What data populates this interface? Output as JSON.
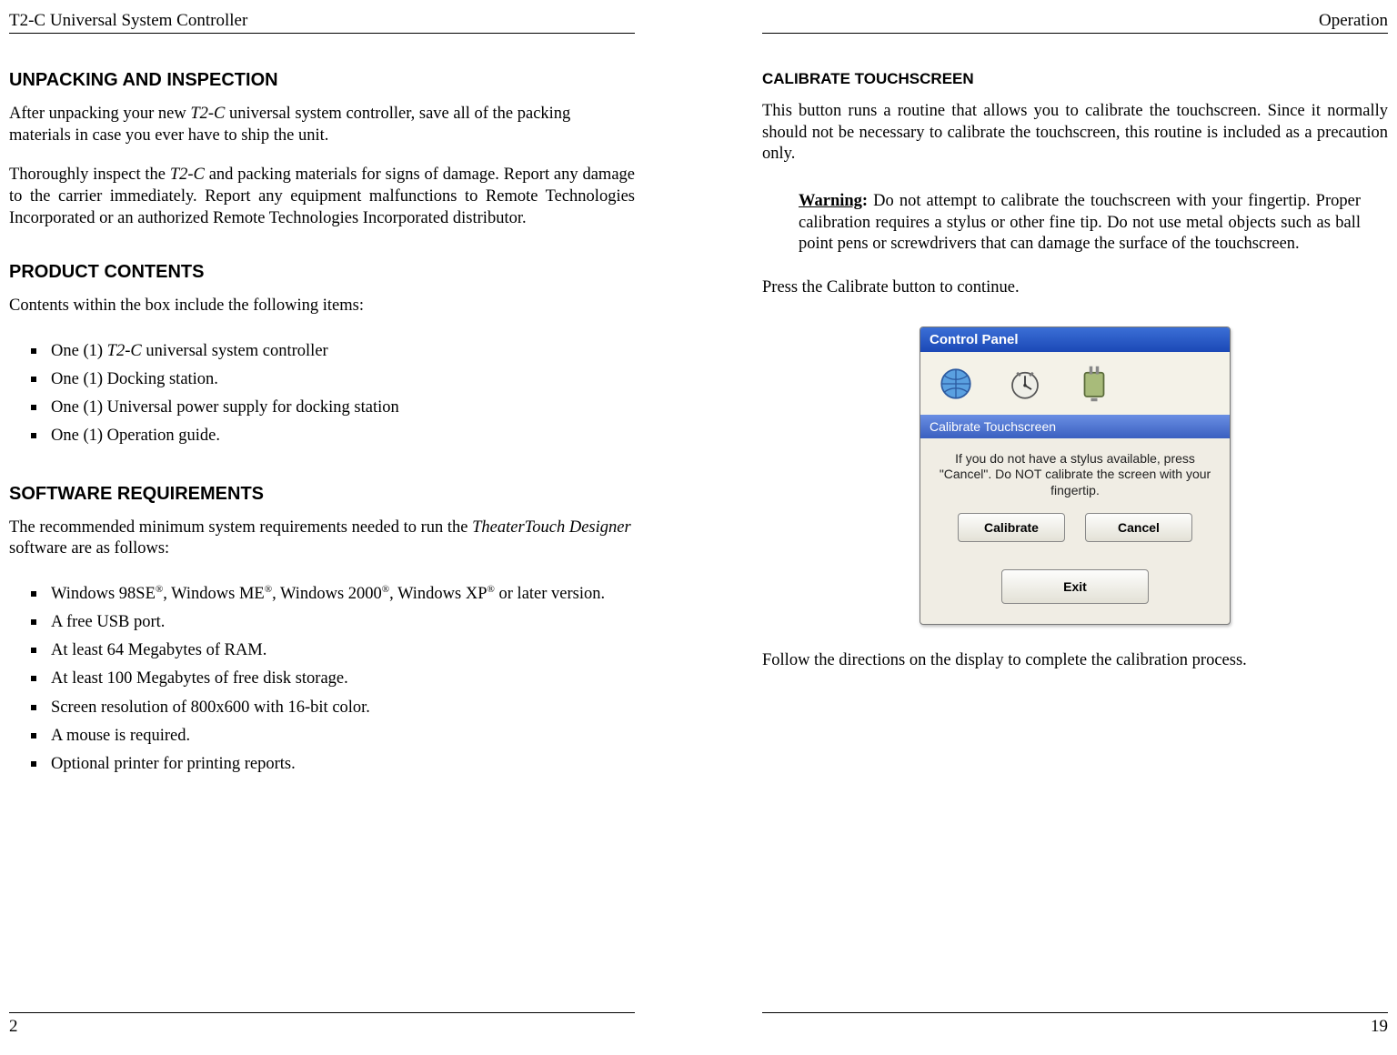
{
  "leftPage": {
    "runningHead": "T2-C Universal System Controller",
    "h1_unpacking": "UNPACKING AND INSPECTION",
    "p_unpack1_a": "After unpacking your new ",
    "p_unpack1_b": "T2-C",
    "p_unpack1_c": " universal system controller, save all of the packing materials in case you ever have to ship the unit.",
    "p_unpack2_a": "Thoroughly inspect the ",
    "p_unpack2_b": "T2-C",
    "p_unpack2_c": " and packing materials for signs of damage. Report any damage to the carrier immediately. Report any equipment malfunctions to Remote Technologies Incorporated or an authorized Remote Technologies Incorporated distributor.",
    "h1_contents": "PRODUCT CONTENTS",
    "p_contents_intro": "Contents within the box include the following items:",
    "contents_items": {
      "i0_a": "One (1) ",
      "i0_b": "T2-C",
      "i0_c": " universal system controller",
      "i1": "One (1) Docking station.",
      "i2": "One (1) Universal power supply for docking station",
      "i3": "One (1) Operation guide."
    },
    "h1_software": "SOFTWARE REQUIREMENTS",
    "p_soft_a": "The recommended minimum system requirements needed to run the ",
    "p_soft_b": "TheaterTouch Designer",
    "p_soft_c": " software are as follows:",
    "software_items": {
      "s0_html": "Windows 98SE<sup>®</sup>, Windows ME<sup>®</sup>, Windows 2000<sup>®</sup>, Windows XP<sup>®</sup> or later version.",
      "s1": "A free USB port.",
      "s2": "At least 64 Megabytes of RAM.",
      "s3": "At least 100 Megabytes of free disk storage.",
      "s4": "Screen resolution of 800x600 with 16-bit color.",
      "s5": "A mouse is required.",
      "s6": "Optional printer for printing reports."
    },
    "pageNumber": "2"
  },
  "rightPage": {
    "runningHead": "Operation",
    "h1_calibrate": "CALIBRATE TOUCHSCREEN",
    "p_cal1": "This button runs a routine that allows you to calibrate the touchscreen. Since it normally should not be necessary to calibrate the touchscreen, this routine is included as a precaution only.",
    "warning_label": "Warning",
    "warning_text": ": Do not attempt to calibrate the touchscreen with your fingertip. Proper calibration requires a stylus or other fine tip. Do not use metal objects such as ball point pens or screwdrivers that can damage the surface of the touchscreen.",
    "p_cal2": "Press the Calibrate button to continue.",
    "panel": {
      "title": "Control Panel",
      "bar": "Calibrate Touchscreen",
      "msg": "If you do not have a stylus available, press \"Cancel\". Do NOT calibrate the screen with your fingertip.",
      "btn_calibrate": "Calibrate",
      "btn_cancel": "Cancel",
      "btn_exit": "Exit"
    },
    "p_cal3": "Follow the directions on the display to complete the calibration process.",
    "pageNumber": "19"
  },
  "colors": {
    "text": "#000000",
    "panel_title_grad_top": "#3b6fd6",
    "panel_title_grad_bottom": "#1b48b6",
    "panel_bar_grad_top": "#6a8fe3",
    "panel_bar_grad_bottom": "#3a5fc0",
    "panel_bg": "#f0ede4",
    "button_border": "#888888"
  }
}
